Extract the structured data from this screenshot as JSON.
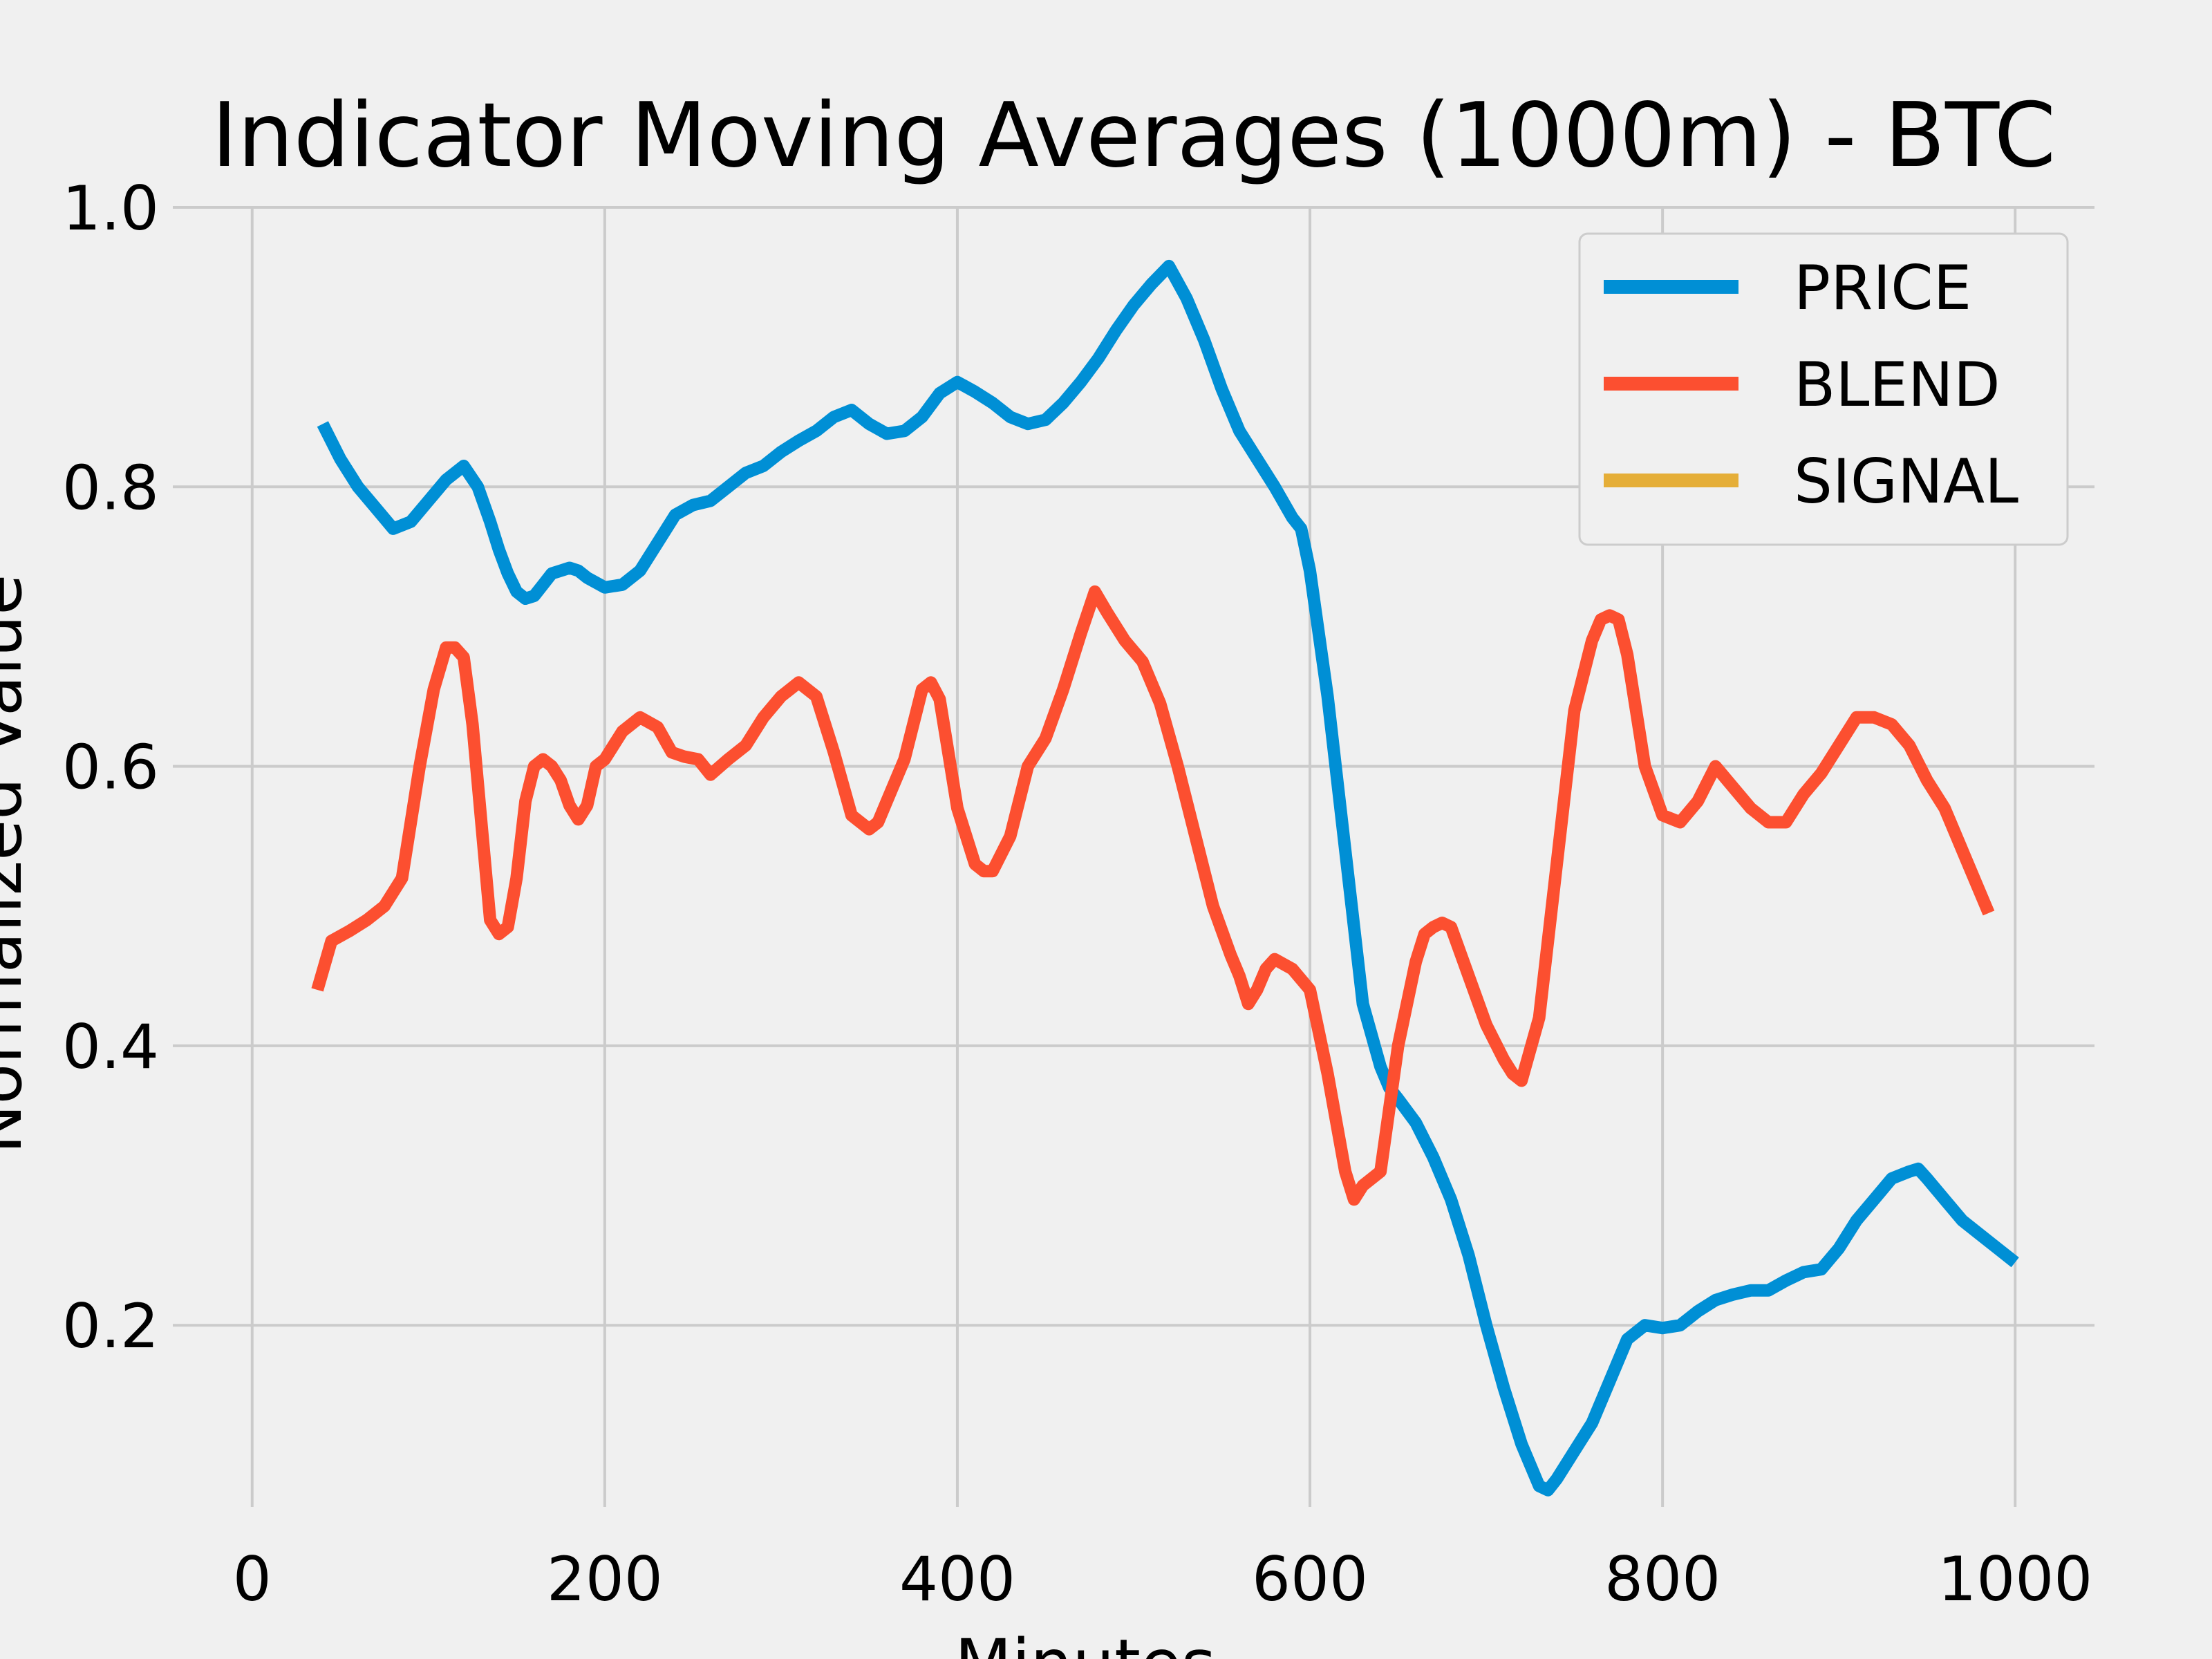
{
  "chart_data": {
    "type": "line",
    "title": "Indicator Moving Averages (1000m) - BTC",
    "xlabel": "Minutes",
    "ylabel": "Normalized Value",
    "xlim": [
      -45,
      1045
    ],
    "ylim": [
      0.07,
      1.0
    ],
    "xticks": [
      0,
      200,
      400,
      600,
      800,
      1000
    ],
    "xtick_labels": [
      "0",
      "200",
      "400",
      "600",
      "800",
      "1000"
    ],
    "yticks": [
      0.2,
      0.4,
      0.6,
      0.8,
      1.0
    ],
    "ytick_labels": [
      "0.2",
      "0.4",
      "0.6",
      "0.8",
      "1.0"
    ],
    "grid": true,
    "legend_position": "top-right",
    "series": [
      {
        "name": "PRICE",
        "color": "#008fd5",
        "x": [
          40,
          50,
          60,
          70,
          80,
          90,
          100,
          110,
          120,
          128,
          135,
          140,
          145,
          150,
          155,
          160,
          165,
          170,
          175,
          180,
          185,
          190,
          200,
          210,
          220,
          230,
          240,
          250,
          260,
          270,
          280,
          290,
          300,
          310,
          320,
          330,
          340,
          350,
          360,
          370,
          380,
          390,
          400,
          410,
          420,
          430,
          440,
          450,
          460,
          470,
          480,
          490,
          500,
          510,
          520,
          530,
          540,
          550,
          560,
          570,
          580,
          590,
          595,
          600,
          610,
          620,
          630,
          640,
          645,
          650,
          660,
          670,
          680,
          690,
          700,
          710,
          720,
          730,
          735,
          740,
          750,
          760,
          770,
          780,
          790,
          800,
          810,
          820,
          830,
          840,
          850,
          860,
          870,
          880,
          890,
          900,
          910,
          920,
          930,
          940,
          945,
          950,
          960,
          970,
          980,
          990,
          1000
        ],
        "values": [
          0.845,
          0.82,
          0.8,
          0.785,
          0.77,
          0.775,
          0.79,
          0.805,
          0.815,
          0.8,
          0.775,
          0.755,
          0.738,
          0.725,
          0.72,
          0.722,
          0.73,
          0.738,
          0.74,
          0.742,
          0.74,
          0.735,
          0.728,
          0.73,
          0.74,
          0.76,
          0.78,
          0.787,
          0.79,
          0.8,
          0.81,
          0.815,
          0.825,
          0.833,
          0.84,
          0.85,
          0.855,
          0.845,
          0.838,
          0.84,
          0.85,
          0.867,
          0.875,
          0.868,
          0.86,
          0.85,
          0.845,
          0.848,
          0.86,
          0.875,
          0.892,
          0.912,
          0.93,
          0.945,
          0.958,
          0.935,
          0.905,
          0.87,
          0.84,
          0.82,
          0.8,
          0.778,
          0.77,
          0.74,
          0.65,
          0.54,
          0.43,
          0.385,
          0.37,
          0.362,
          0.345,
          0.32,
          0.29,
          0.25,
          0.2,
          0.155,
          0.115,
          0.085,
          0.082,
          0.09,
          0.11,
          0.13,
          0.16,
          0.19,
          0.2,
          0.198,
          0.2,
          0.21,
          0.218,
          0.222,
          0.225,
          0.225,
          0.232,
          0.238,
          0.24,
          0.255,
          0.275,
          0.29,
          0.305,
          0.31,
          0.312,
          0.305,
          0.29,
          0.275,
          0.265,
          0.255,
          0.245
        ]
      },
      {
        "name": "BLEND",
        "color": "#fc4f30",
        "x": [
          37,
          45,
          55,
          65,
          75,
          85,
          95,
          103,
          110,
          115,
          120,
          125,
          130,
          135,
          140,
          145,
          150,
          155,
          160,
          165,
          170,
          175,
          180,
          185,
          190,
          195,
          200,
          205,
          210,
          220,
          230,
          238,
          245,
          253,
          260,
          270,
          280,
          290,
          300,
          310,
          320,
          330,
          340,
          350,
          355,
          360,
          370,
          380,
          385,
          390,
          400,
          410,
          415,
          420,
          430,
          440,
          450,
          460,
          470,
          478,
          485,
          495,
          505,
          515,
          525,
          535,
          545,
          555,
          560,
          565,
          570,
          575,
          580,
          590,
          600,
          610,
          620,
          625,
          630,
          640,
          650,
          660,
          665,
          670,
          675,
          680,
          690,
          700,
          710,
          715,
          720,
          730,
          740,
          750,
          760,
          765,
          770,
          775,
          780,
          790,
          800,
          810,
          820,
          830,
          840,
          850,
          860,
          870,
          880,
          890,
          900,
          910,
          920,
          930,
          940,
          950,
          960,
          970,
          980,
          985
        ],
        "values": [
          0.44,
          0.475,
          0.482,
          0.49,
          0.5,
          0.52,
          0.6,
          0.655,
          0.685,
          0.685,
          0.678,
          0.63,
          0.56,
          0.49,
          0.48,
          0.485,
          0.52,
          0.575,
          0.6,
          0.605,
          0.6,
          0.59,
          0.572,
          0.562,
          0.572,
          0.6,
          0.605,
          0.615,
          0.625,
          0.635,
          0.628,
          0.61,
          0.607,
          0.605,
          0.594,
          0.605,
          0.615,
          0.635,
          0.65,
          0.66,
          0.65,
          0.61,
          0.565,
          0.555,
          0.56,
          0.575,
          0.605,
          0.655,
          0.66,
          0.648,
          0.57,
          0.53,
          0.525,
          0.525,
          0.55,
          0.6,
          0.62,
          0.655,
          0.695,
          0.725,
          0.71,
          0.69,
          0.675,
          0.645,
          0.6,
          0.55,
          0.5,
          0.465,
          0.45,
          0.43,
          0.44,
          0.455,
          0.462,
          0.455,
          0.44,
          0.38,
          0.31,
          0.29,
          0.3,
          0.31,
          0.4,
          0.46,
          0.48,
          0.485,
          0.488,
          0.485,
          0.45,
          0.415,
          0.39,
          0.38,
          0.375,
          0.42,
          0.53,
          0.64,
          0.69,
          0.705,
          0.708,
          0.705,
          0.68,
          0.6,
          0.565,
          0.56,
          0.575,
          0.6,
          0.585,
          0.57,
          0.56,
          0.56,
          0.58,
          0.595,
          0.615,
          0.635,
          0.635,
          0.63,
          0.615,
          0.59,
          0.57,
          0.54,
          0.51,
          0.495
        ]
      },
      {
        "name": "SIGNAL",
        "color": "#e5ae38",
        "x": [],
        "values": []
      }
    ]
  }
}
